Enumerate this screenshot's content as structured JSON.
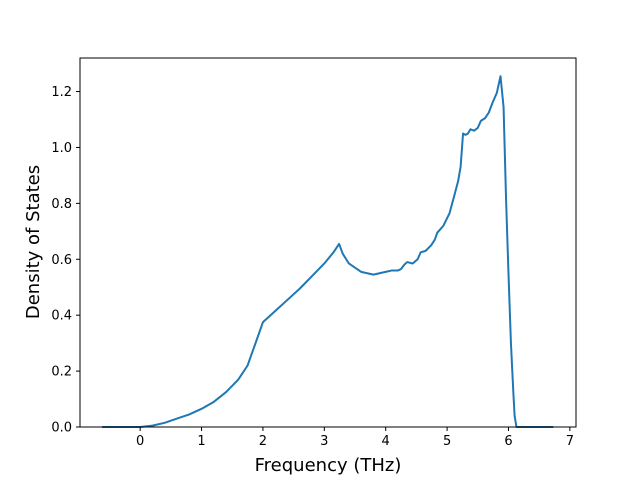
{
  "chart_data": {
    "type": "line",
    "title": "",
    "xlabel": "Frequency (THz)",
    "ylabel": "Density of States",
    "xlim": [
      -0.98,
      7.1
    ],
    "ylim": [
      0.0,
      1.32
    ],
    "xticks": [
      0,
      1,
      2,
      3,
      4,
      5,
      6,
      7
    ],
    "xtick_labels": [
      "0",
      "1",
      "2",
      "3",
      "4",
      "5",
      "6",
      "7"
    ],
    "yticks": [
      0.0,
      0.2,
      0.4,
      0.6,
      0.8,
      1.0,
      1.2
    ],
    "ytick_labels": [
      "0.0",
      "0.2",
      "0.4",
      "0.6",
      "0.8",
      "1.0",
      "1.2"
    ],
    "grid": false,
    "line_color": "#1f77b4",
    "series": [
      {
        "x": [
          -0.62,
          0.0,
          0.2,
          0.4,
          0.6,
          0.8,
          1.0,
          1.2,
          1.4,
          1.6,
          1.75,
          1.83,
          1.88,
          2.0,
          2.1,
          2.2,
          2.4,
          2.6,
          2.8,
          3.0,
          3.15,
          3.24,
          3.3,
          3.4,
          3.5,
          3.6,
          3.8,
          4.0,
          4.1,
          4.2,
          4.25,
          4.3,
          4.35,
          4.44,
          4.52,
          4.57,
          4.65,
          4.74,
          4.8,
          4.84,
          4.94,
          5.04,
          5.12,
          5.18,
          5.22,
          5.26,
          5.3,
          5.34,
          5.38,
          5.44,
          5.5,
          5.55,
          5.62,
          5.68,
          5.74,
          5.81,
          5.87,
          5.92,
          5.96,
          6.0,
          6.04,
          6.08,
          6.1,
          6.13,
          6.2,
          6.4,
          6.73
        ],
        "y": [
          0.0,
          0.0,
          0.005,
          0.015,
          0.03,
          0.045,
          0.065,
          0.09,
          0.125,
          0.17,
          0.22,
          0.27,
          0.3,
          0.375,
          0.395,
          0.415,
          0.455,
          0.495,
          0.54,
          0.585,
          0.625,
          0.655,
          0.62,
          0.585,
          0.57,
          0.555,
          0.545,
          0.555,
          0.56,
          0.56,
          0.565,
          0.58,
          0.59,
          0.585,
          0.6,
          0.625,
          0.63,
          0.65,
          0.67,
          0.695,
          0.72,
          0.765,
          0.83,
          0.88,
          0.93,
          1.05,
          1.045,
          1.05,
          1.065,
          1.06,
          1.07,
          1.095,
          1.105,
          1.125,
          1.16,
          1.195,
          1.255,
          1.145,
          0.82,
          0.55,
          0.3,
          0.12,
          0.04,
          0.0,
          0.0,
          0.0,
          0.0
        ]
      }
    ]
  }
}
